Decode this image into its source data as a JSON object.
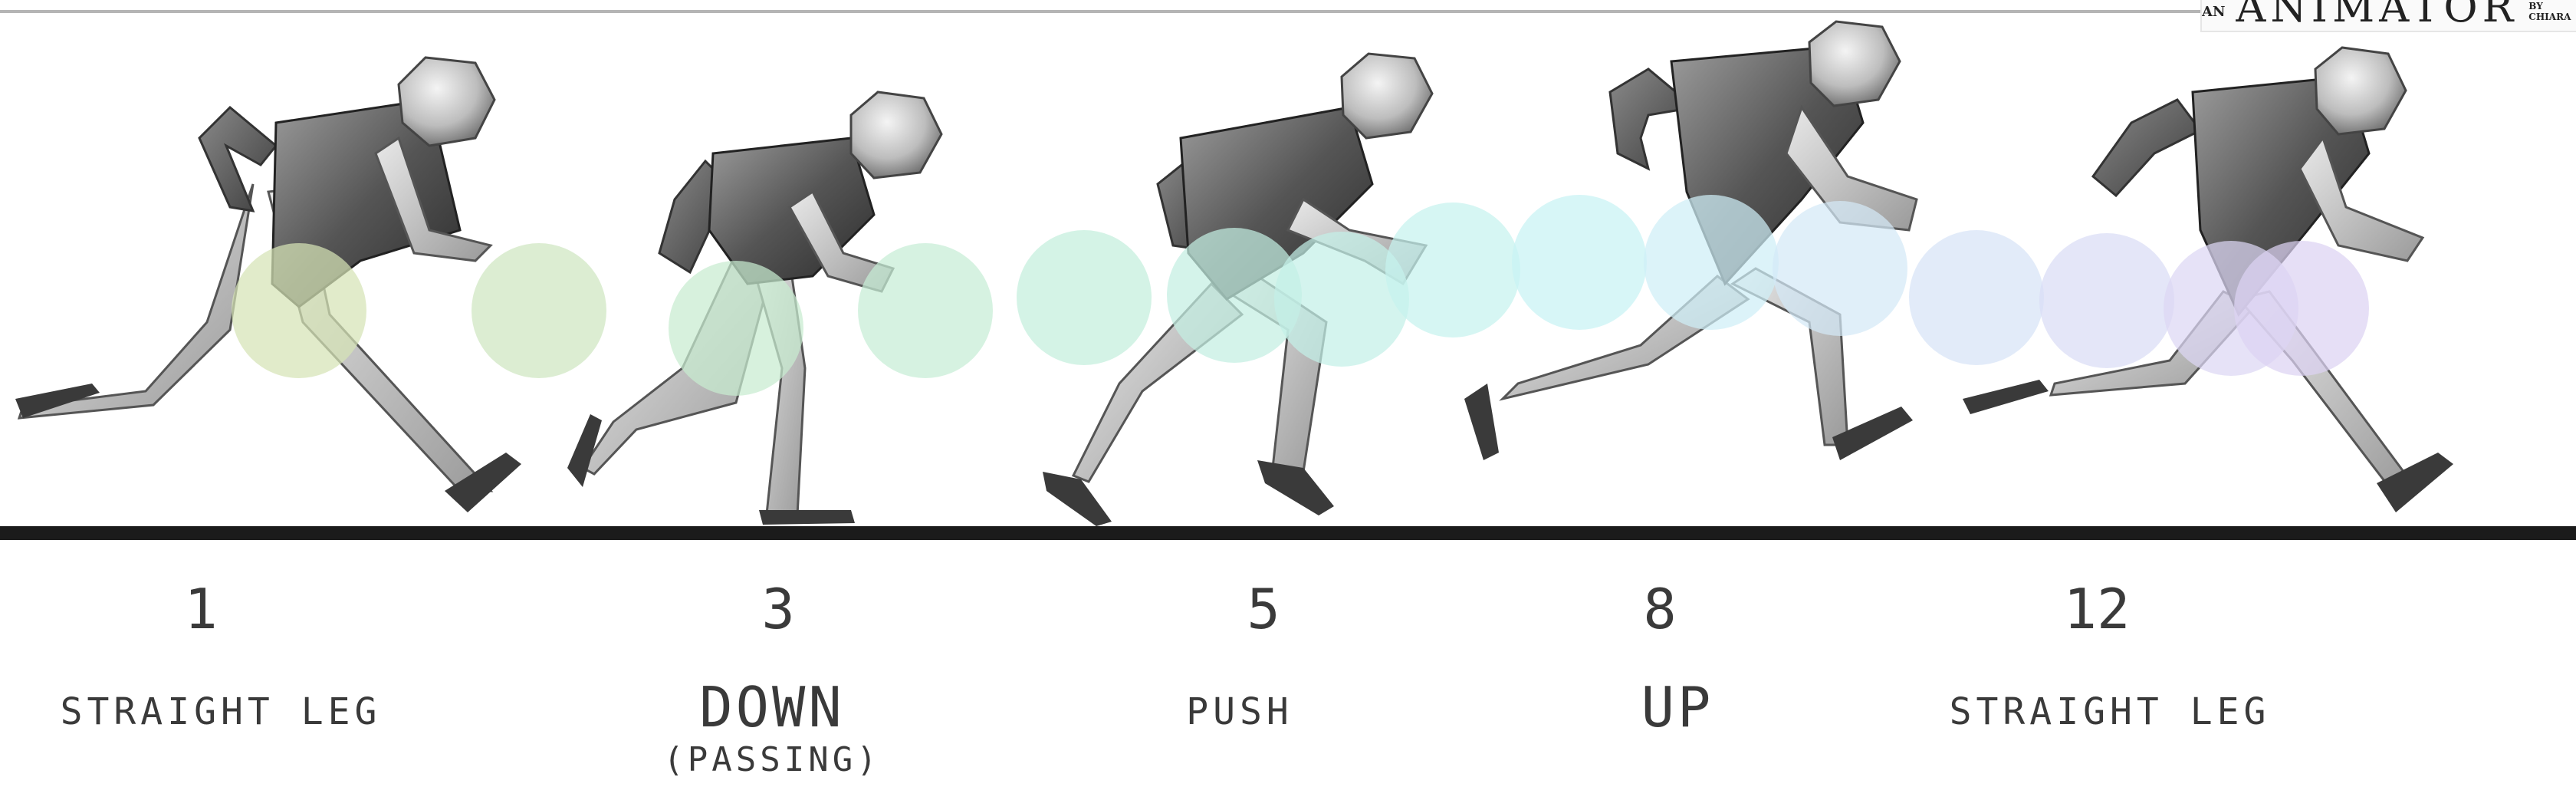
{
  "logo": {
    "prefix": "AN",
    "word": "ANIMATOR",
    "suffix": "BY CHIARA"
  },
  "path_circle_colors": [
    "#d6e3b6",
    "#cfe6c0",
    "#c8ecd0",
    "#c6edd6",
    "#c4eedd",
    "#c4efe2",
    "#c4f0e8",
    "#c6f2ee",
    "#c8f2f4",
    "#cfeff6",
    "#d4e9f6",
    "#d7e3f6",
    "#dadcf5",
    "#dcd7f4",
    "#dcd2f2"
  ],
  "frames": [
    {
      "number": "1",
      "label": "STRAIGHT LEG",
      "sub": ""
    },
    {
      "number": "3",
      "label": "DOWN",
      "sub": "(PASSING)"
    },
    {
      "number": "5",
      "label": "PUSH",
      "sub": ""
    },
    {
      "number": "8",
      "label": "UP",
      "sub": ""
    },
    {
      "number": "12",
      "label": "STRAIGHT LEG",
      "sub": ""
    }
  ]
}
